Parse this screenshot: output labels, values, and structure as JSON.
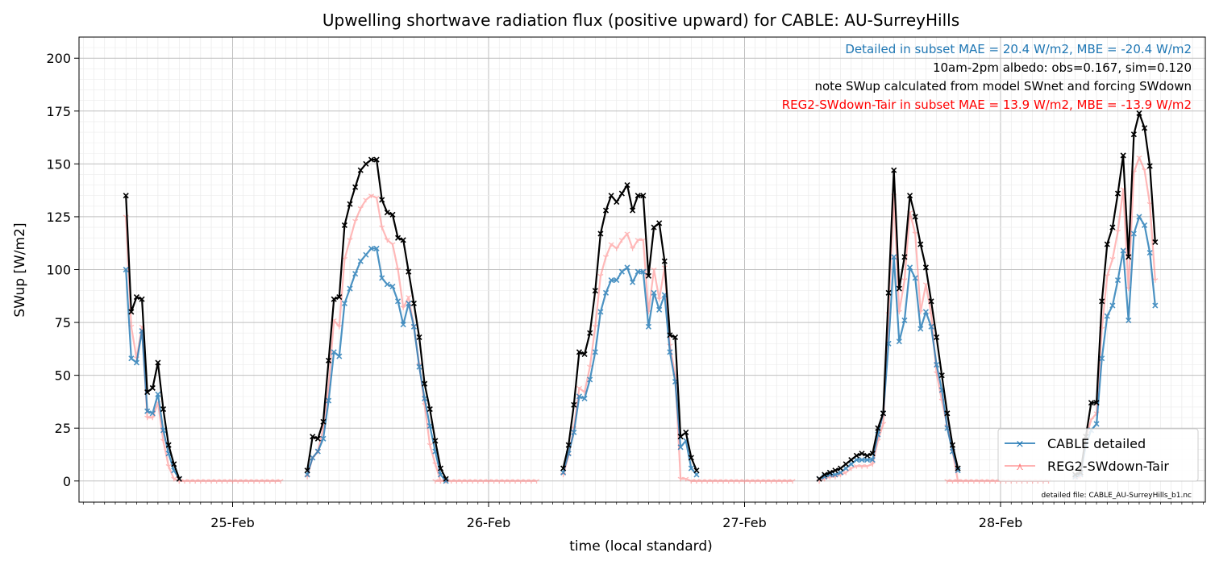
{
  "chart_data": {
    "type": "line",
    "title": "Upwelling shortwave radiation flux (positive upward) for CABLE: AU-SurreyHills",
    "xlabel": "time (local standard)",
    "ylabel": "SWup [W/m2]",
    "xlim_days": [
      24.4,
      28.8
    ],
    "ylim": [
      -10,
      210
    ],
    "x_ticks": [
      {
        "label": "25-Feb",
        "day": 25
      },
      {
        "label": "26-Feb",
        "day": 26
      },
      {
        "label": "27-Feb",
        "day": 27
      },
      {
        "label": "28-Feb",
        "day": 28
      }
    ],
    "y_ticks": [
      0,
      25,
      50,
      75,
      100,
      125,
      150,
      175,
      200
    ],
    "grid": true,
    "annotations": [
      {
        "text": "Detailed in subset MAE = 20.4 W/m2, MBE = -20.4 W/m2",
        "color": "#1f77b4"
      },
      {
        "text": "10am-2pm albedo: obs=0.167, sim=0.120",
        "color": "#000000"
      },
      {
        "text": "note SWup calculated from model SWnet and forcing SWdown",
        "color": "#000000"
      },
      {
        "text": "REG2-SWdown-Tair in subset MAE = 13.9 W/m2, MBE = -13.9 W/m2",
        "color": "#ff0000"
      }
    ],
    "footnote": "detailed file: CABLE_AU-SurreyHills_b1.nc",
    "legend_position": "bottom-right",
    "series": [
      {
        "name": "CABLE detailed",
        "color": "#1f77b4",
        "segments": [
          {
            "start": [
              24,
              14
            ],
            "values": [
              100,
              58,
              56,
              71,
              33,
              32,
              41,
              24,
              13,
              5,
              1
            ]
          },
          {
            "start": [
              25,
              7
            ],
            "values": [
              3,
              11,
              14,
              20,
              38,
              61,
              59,
              84,
              91,
              98,
              104,
              107,
              110,
              110,
              96,
              93,
              92,
              85,
              74,
              84,
              73,
              54,
              39,
              26,
              14,
              3,
              0
            ]
          },
          {
            "start": [
              26,
              7
            ],
            "values": [
              4,
              13,
              23,
              40,
              39,
              48,
              61,
              80,
              89,
              95,
              95,
              99,
              101,
              94,
              99,
              99,
              73,
              89,
              81,
              88,
              61,
              47,
              16,
              19,
              6,
              3
            ]
          },
          {
            "start": [
              27,
              7
            ],
            "values": [
              1,
              2,
              3,
              3,
              4,
              6,
              8,
              10,
              10,
              10,
              10,
              22,
              32,
              65,
              106,
              66,
              76,
              101,
              96,
              72,
              80,
              73,
              55,
              43,
              25,
              14,
              5
            ]
          },
          {
            "start": [
              28,
              7
            ],
            "values": [
              2,
              3,
              17,
              24,
              27,
              58,
              78,
              83,
              95,
              109,
              76,
              117,
              125,
              121,
              108,
              83
            ]
          }
        ]
      },
      {
        "name": "REG2-SWdown-Tair",
        "color": "#ff8080",
        "segments": [
          {
            "start": [
              24,
              14
            ],
            "values": [
              125,
              73,
              58,
              73,
              30,
              30,
              37,
              19,
              7,
              1,
              0
            ]
          },
          {
            "start": [
              24,
              19
            ],
            "values": [
              0,
              0,
              0,
              0,
              0,
              0,
              0,
              0,
              0,
              0,
              0,
              0,
              0,
              0,
              0,
              0,
              0,
              0,
              0,
              0
            ]
          },
          {
            "start": [
              25,
              7
            ],
            "values": [
              2,
              11,
              14,
              25,
              45,
              76,
              73,
              105,
              114,
              123,
              129,
              133,
              135,
              134,
              120,
              114,
              112,
              100,
              82,
              87,
              73,
              55,
              36,
              17,
              8,
              0
            ]
          },
          {
            "start": [
              25,
              19
            ],
            "values": [
              0,
              0,
              0,
              0,
              0,
              0,
              0,
              0,
              0,
              0,
              0,
              0,
              0,
              0,
              0,
              0,
              0,
              0,
              0,
              0
            ]
          },
          {
            "start": [
              26,
              7
            ],
            "values": [
              3,
              12,
              25,
              44,
              42,
              54,
              73,
              97,
              106,
              112,
              110,
              114,
              117,
              110,
              114,
              114,
              80,
              100,
              86,
              101,
              64,
              50,
              1,
              1,
              0,
              0
            ]
          },
          {
            "start": [
              26,
              19
            ],
            "values": [
              0,
              0,
              0,
              0,
              0,
              0,
              0,
              0,
              0,
              0,
              0,
              0,
              0,
              0,
              0,
              0,
              0,
              0,
              0,
              0
            ]
          },
          {
            "start": [
              27,
              7
            ],
            "values": [
              0,
              1,
              2,
              2,
              3,
              4,
              6,
              7,
              7,
              7,
              8,
              19,
              27,
              79,
              135,
              80,
              95,
              127,
              117,
              80,
              93,
              79,
              51,
              38,
              26,
              14,
              0
            ]
          },
          {
            "start": [
              27,
              19
            ],
            "values": [
              0,
              0,
              0,
              0,
              0,
              0,
              0,
              0,
              0,
              0,
              0,
              0,
              0,
              0,
              0,
              0,
              0,
              0,
              0,
              0
            ]
          },
          {
            "start": [
              28,
              7
            ],
            "values": [
              1,
              2,
              20,
              29,
              32,
              72,
              97,
              105,
              118,
              138,
              91,
              146,
              153,
              147,
              131,
              95
            ]
          }
        ]
      },
      {
        "name": "",
        "color": "#000000",
        "segments": [
          {
            "start": [
              24,
              14
            ],
            "values": [
              135,
              80,
              87,
              86,
              42,
              44,
              56,
              34,
              17,
              8,
              1
            ]
          },
          {
            "start": [
              25,
              7
            ],
            "values": [
              5,
              21,
              20,
              28,
              57,
              86,
              87,
              121,
              131,
              139,
              147,
              150,
              152,
              152,
              133,
              127,
              126,
              115,
              114,
              99,
              84,
              68,
              46,
              34,
              19,
              6,
              1
            ]
          },
          {
            "start": [
              26,
              7
            ],
            "values": [
              6,
              17,
              36,
              61,
              60,
              70,
              90,
              117,
              128,
              135,
              132,
              136,
              140,
              128,
              135,
              135,
              97,
              120,
              122,
              104,
              69,
              68,
              21,
              23,
              11,
              5
            ]
          },
          {
            "start": [
              27,
              7
            ],
            "values": [
              1,
              3,
              4,
              5,
              6,
              8,
              10,
              12,
              13,
              12,
              13,
              25,
              32,
              89,
              147,
              91,
              106,
              135,
              125,
              112,
              101,
              85,
              68,
              50,
              32,
              17,
              6
            ]
          },
          {
            "start": [
              28,
              7
            ],
            "values": [
              3,
              4,
              21,
              37,
              37,
              85,
              112,
              120,
              136,
              154,
              106,
              164,
              174,
              167,
              149,
              113
            ]
          }
        ]
      }
    ]
  }
}
